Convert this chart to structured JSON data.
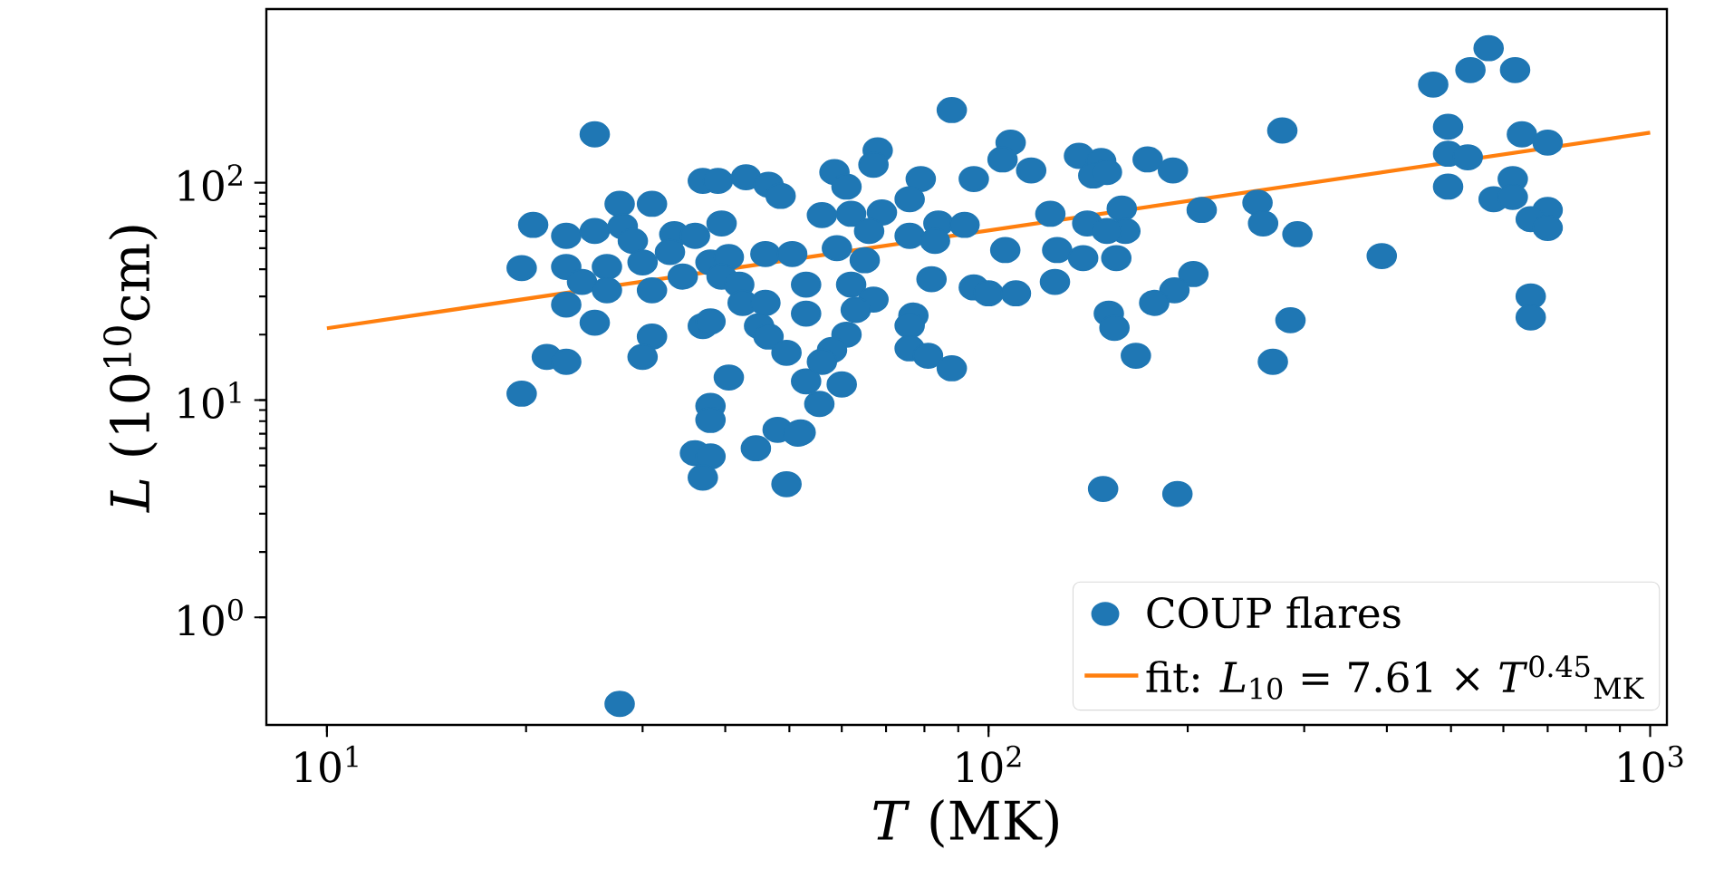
{
  "chart_data": {
    "type": "scatter",
    "xlabel": "*T* (MK)",
    "ylabel": "*L* (10$^{10}$cm)",
    "log": "xy",
    "legend": "bottom right",
    "xlim": [
      8.1,
      1060
    ],
    "ylim": [
      0.32,
      630
    ],
    "xticks": [
      {
        "value": 10,
        "label": "10$^{1}$"
      },
      {
        "value": 100,
        "label": "10$^{2}$"
      },
      {
        "value": 1000,
        "label": "10$^{3}$"
      }
    ],
    "yticks": [
      {
        "value": 1,
        "label": "10$^{0}$"
      },
      {
        "value": 10,
        "label": "10$^{1}$"
      },
      {
        "value": 100,
        "label": "10$^{2}$"
      }
    ],
    "series": [
      {
        "name": "COUP flares",
        "marker": "circle",
        "color": "#1f77b4",
        "x": [
          88,
          68,
          67,
          58.5,
          61,
          79,
          76,
          95,
          108,
          105,
          116,
          137,
          148,
          144,
          151,
          174,
          190,
          210,
          56,
          62,
          69,
          66,
          76,
          84,
          92,
          83,
          124,
          141,
          159,
          161,
          151,
          59,
          65,
          106,
          127,
          139,
          156,
          126,
          82,
          62,
          53,
          95,
          100,
          110,
          204,
          191,
          178,
          67,
          63,
          53,
          152,
          155,
          77,
          76,
          76,
          81,
          88,
          61,
          58,
          56,
          60,
          53,
          55.5,
          52,
          167,
          149,
          193,
          570,
          535,
          625,
          470,
          495,
          640,
          700,
          495,
          530,
          278,
          495,
          620,
          580,
          620,
          700,
          660,
          700,
          255,
          260,
          293,
          393,
          286,
          269,
          660,
          660,
          25.4,
          20.5,
          23,
          25.4,
          27.7,
          28,
          29,
          31,
          33.5,
          36,
          33,
          37,
          39,
          43,
          46.5,
          48.5,
          39.5,
          19.7,
          23,
          24.3,
          26.5,
          26.5,
          30,
          31,
          34.5,
          38,
          40.5,
          39.5,
          42,
          46,
          50.5,
          23,
          25.4,
          37,
          38,
          42.5,
          46,
          45,
          46.5,
          49.5,
          31,
          30,
          21.5,
          23,
          19.7,
          40.5,
          38,
          38,
          36,
          38,
          37,
          44.5,
          48,
          51.5,
          49.5,
          27.7
        ],
        "values": [
          216,
          141,
          121,
          112,
          96,
          104,
          84,
          104,
          153,
          128,
          114,
          133,
          126,
          108,
          112,
          128,
          114,
          75,
          71,
          72,
          73,
          60,
          57,
          65,
          64,
          54,
          72,
          65,
          76,
          60,
          60,
          50,
          44,
          49,
          49,
          45,
          45,
          35,
          36,
          34,
          34,
          33,
          31,
          31,
          38,
          32,
          28,
          29,
          26,
          25,
          25,
          21.5,
          24.5,
          22,
          17.3,
          16,
          14,
          20,
          17,
          15,
          11.8,
          12.2,
          9.6,
          7.1,
          16,
          3.9,
          3.7,
          416,
          330,
          330,
          283,
          181,
          167,
          153,
          136,
          131,
          174,
          96,
          104,
          84,
          86,
          75,
          68,
          62,
          81,
          65,
          58,
          46,
          23.3,
          15,
          30,
          24,
          167,
          64,
          57,
          60,
          80,
          63,
          54,
          80,
          58,
          57,
          48,
          102,
          102,
          106,
          98,
          87,
          65,
          40.5,
          41,
          35,
          41,
          32,
          43,
          32,
          37,
          43,
          45.5,
          37,
          34,
          47,
          47,
          27.5,
          22.7,
          21.9,
          23,
          28,
          28,
          21.9,
          19.6,
          16.5,
          19.6,
          15.8,
          15.8,
          15,
          10.7,
          12.7,
          9.4,
          8.1,
          5.7,
          5.5,
          4.4,
          6.0,
          7.3,
          7.0,
          4.1,
          0.4
        ]
      },
      {
        "name": "fit: *L*$_{10}$ = 7.61 × *T*$^{0.45}$$_{MK}$",
        "type": "line",
        "color": "#ff7f0e",
        "x": [
          10,
          1000
        ],
        "values": [
          21.4,
          170
        ]
      }
    ]
  }
}
